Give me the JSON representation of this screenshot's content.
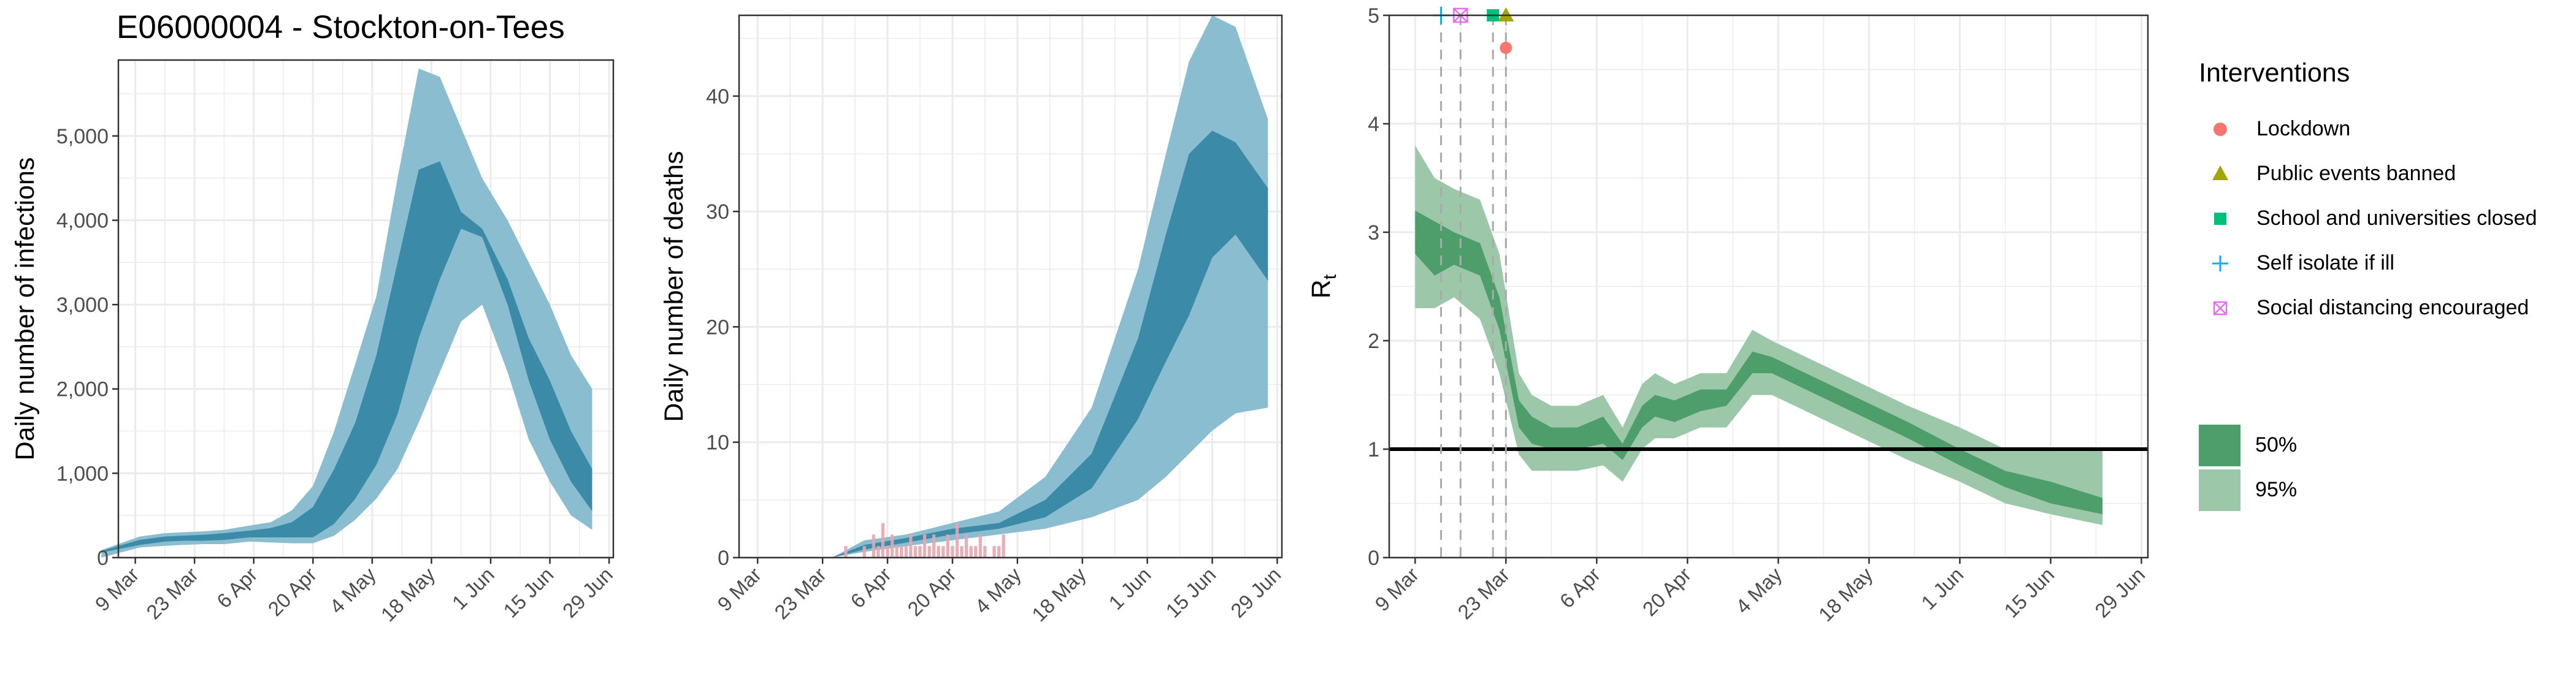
{
  "title": "E06000004 - Stockton-on-Tees",
  "colors": {
    "infection_outer": "#8bbdd0",
    "infection_inner": "#3a8aa8",
    "rt_outer": "#9cc7a8",
    "rt_inner": "#4e9e6c",
    "deaths_bar": "#e4a6b0",
    "grid": "#ebebeb",
    "lockdown": "#F8766D",
    "public_events": "#A3A500",
    "schools": "#00BF7D",
    "self_isolate": "#00B0F6",
    "social_distancing": "#E76BF3"
  },
  "chart_data": [
    {
      "type": "area",
      "ylabel": "Daily number of infections",
      "xlabel": "",
      "x_ticks": [
        "9 Mar",
        "23 Mar",
        "6 Apr",
        "20 Apr",
        "4 May",
        "18 May",
        "1 Jun",
        "15 Jun",
        "29 Jun"
      ],
      "y_ticks": [
        "0",
        "1,000",
        "2,000",
        "3,000",
        "4,000",
        "5,000"
      ],
      "ylim": [
        0,
        5900
      ],
      "x_dates": [
        "2020-03-01",
        "2020-03-10",
        "2020-03-16",
        "2020-03-20",
        "2020-03-25",
        "2020-03-30",
        "2020-04-05",
        "2020-04-10",
        "2020-04-15",
        "2020-04-20",
        "2020-04-25",
        "2020-04-30",
        "2020-05-05",
        "2020-05-10",
        "2020-05-15",
        "2020-05-20",
        "2020-05-25",
        "2020-05-30",
        "2020-06-05",
        "2020-06-10",
        "2020-06-15",
        "2020-06-20",
        "2020-06-25"
      ],
      "series": [
        {
          "band": "95%",
          "lower": [
            0,
            120,
            140,
            150,
            160,
            160,
            190,
            180,
            170,
            170,
            260,
            450,
            700,
            1050,
            1600,
            2200,
            2800,
            3000,
            2200,
            1400,
            900,
            500,
            330
          ],
          "upper": [
            90,
            250,
            290,
            300,
            310,
            330,
            380,
            420,
            560,
            850,
            1500,
            2300,
            3100,
            4500,
            5800,
            5700,
            5100,
            4500,
            4000,
            3500,
            3000,
            2400,
            2000
          ]
        },
        {
          "band": "50%",
          "lower": [
            60,
            150,
            190,
            200,
            200,
            210,
            240,
            240,
            240,
            240,
            400,
            700,
            1100,
            1700,
            2600,
            3300,
            3900,
            3800,
            3000,
            2100,
            1400,
            900,
            550
          ],
          "upper": [
            80,
            210,
            250,
            260,
            270,
            290,
            320,
            350,
            420,
            600,
            1050,
            1600,
            2400,
            3500,
            4600,
            4700,
            4100,
            3900,
            3300,
            2600,
            2100,
            1500,
            1050
          ]
        }
      ]
    },
    {
      "type": "area",
      "ylabel": "Daily number of deaths",
      "xlabel": "",
      "x_ticks": [
        "9 Mar",
        "23 Mar",
        "6 Apr",
        "20 Apr",
        "4 May",
        "18 May",
        "1 Jun",
        "15 Jun",
        "29 Jun"
      ],
      "y_ticks": [
        "0",
        "10",
        "20",
        "30",
        "40"
      ],
      "ylim": [
        0,
        47
      ],
      "x_dates": [
        "2020-03-25",
        "2020-04-01",
        "2020-04-10",
        "2020-04-20",
        "2020-04-30",
        "2020-05-10",
        "2020-05-20",
        "2020-05-30",
        "2020-06-05",
        "2020-06-10",
        "2020-06-15",
        "2020-06-20",
        "2020-06-27"
      ],
      "series": [
        {
          "band": "95%",
          "lower": [
            0,
            0.5,
            1,
            1.5,
            2,
            2.5,
            3.5,
            5,
            7,
            9,
            11,
            12.5,
            13
          ],
          "upper": [
            0,
            1.5,
            2,
            3,
            4,
            7,
            13,
            25,
            35,
            43,
            47,
            46,
            38
          ]
        },
        {
          "band": "50%",
          "lower": [
            0,
            0.7,
            1.3,
            2,
            2.5,
            3.5,
            6,
            12,
            17,
            21,
            26,
            28,
            24
          ],
          "upper": [
            0,
            1.1,
            1.7,
            2.5,
            3,
            5,
            9,
            19,
            28,
            35,
            37,
            36,
            32
          ]
        }
      ],
      "deaths_bars": {
        "start": "2020-03-28",
        "values": [
          1,
          0,
          0,
          0,
          1,
          0,
          2,
          1,
          3,
          1,
          2,
          1,
          1,
          1,
          2,
          1,
          1,
          2,
          1,
          2,
          1,
          1,
          2,
          1,
          3,
          1,
          2,
          1,
          1,
          2,
          1,
          0,
          1,
          1,
          2
        ]
      }
    },
    {
      "type": "area",
      "ylabel": "R",
      "ylabel_subscript": "t",
      "xlabel": "",
      "x_ticks": [
        "9 Mar",
        "23 Mar",
        "6 Apr",
        "20 Apr",
        "4 May",
        "18 May",
        "1 Jun",
        "15 Jun",
        "29 Jun"
      ],
      "y_ticks": [
        "0",
        "1",
        "2",
        "3",
        "4",
        "5"
      ],
      "ylim": [
        0,
        5
      ],
      "reference_line": 1,
      "x_dates": [
        "2020-03-09",
        "2020-03-12",
        "2020-03-15",
        "2020-03-19",
        "2020-03-22",
        "2020-03-25",
        "2020-03-27",
        "2020-03-30",
        "2020-04-03",
        "2020-04-07",
        "2020-04-10",
        "2020-04-13",
        "2020-04-15",
        "2020-04-18",
        "2020-04-22",
        "2020-04-26",
        "2020-04-30",
        "2020-05-03",
        "2020-05-10",
        "2020-05-17",
        "2020-05-24",
        "2020-06-01",
        "2020-06-08",
        "2020-06-15",
        "2020-06-23"
      ],
      "series": [
        {
          "band": "95%",
          "lower": [
            2.3,
            2.3,
            2.4,
            2.2,
            1.7,
            0.95,
            0.8,
            0.8,
            0.8,
            0.85,
            0.7,
            1.0,
            1.1,
            1.1,
            1.2,
            1.2,
            1.5,
            1.5,
            1.3,
            1.1,
            0.9,
            0.7,
            0.5,
            0.4,
            0.3
          ],
          "upper": [
            3.8,
            3.5,
            3.4,
            3.3,
            2.8,
            1.7,
            1.5,
            1.4,
            1.4,
            1.5,
            1.2,
            1.6,
            1.7,
            1.6,
            1.7,
            1.7,
            2.1,
            2.0,
            1.8,
            1.6,
            1.4,
            1.2,
            1.0,
            1.0,
            1.0
          ]
        },
        {
          "band": "50%",
          "lower": [
            2.8,
            2.6,
            2.7,
            2.6,
            2.1,
            1.2,
            1.05,
            1.0,
            1.0,
            1.05,
            0.9,
            1.2,
            1.3,
            1.25,
            1.35,
            1.4,
            1.7,
            1.7,
            1.5,
            1.3,
            1.1,
            0.85,
            0.65,
            0.5,
            0.4
          ],
          "upper": [
            3.2,
            3.1,
            3.0,
            2.9,
            2.4,
            1.45,
            1.3,
            1.2,
            1.2,
            1.3,
            1.05,
            1.4,
            1.5,
            1.45,
            1.55,
            1.55,
            1.9,
            1.85,
            1.65,
            1.45,
            1.25,
            1.0,
            0.8,
            0.7,
            0.55
          ]
        }
      ],
      "interventions": [
        {
          "date": "2020-03-13",
          "name": "Self isolate if ill",
          "y": 5
        },
        {
          "date": "2020-03-16",
          "name": "Social distancing encouraged",
          "y": 5
        },
        {
          "date": "2020-03-21",
          "name": "School and universities closed",
          "y": 5
        },
        {
          "date": "2020-03-23",
          "name": "Public events banned",
          "y": 5
        },
        {
          "date": "2020-03-23",
          "name": "Lockdown",
          "y": 4.7
        }
      ]
    }
  ],
  "legend": {
    "title": "Interventions",
    "items": [
      {
        "label": "Lockdown",
        "icon": "circle-icon"
      },
      {
        "label": "Public events banned",
        "icon": "triangle-icon"
      },
      {
        "label": "School and universities closed",
        "icon": "square-icon"
      },
      {
        "label": "Self isolate if ill",
        "icon": "plus-icon"
      },
      {
        "label": "Social distancing encouraged",
        "icon": "boxed-x-icon"
      }
    ],
    "bands": [
      {
        "label": "50%"
      },
      {
        "label": "95%"
      }
    ]
  }
}
